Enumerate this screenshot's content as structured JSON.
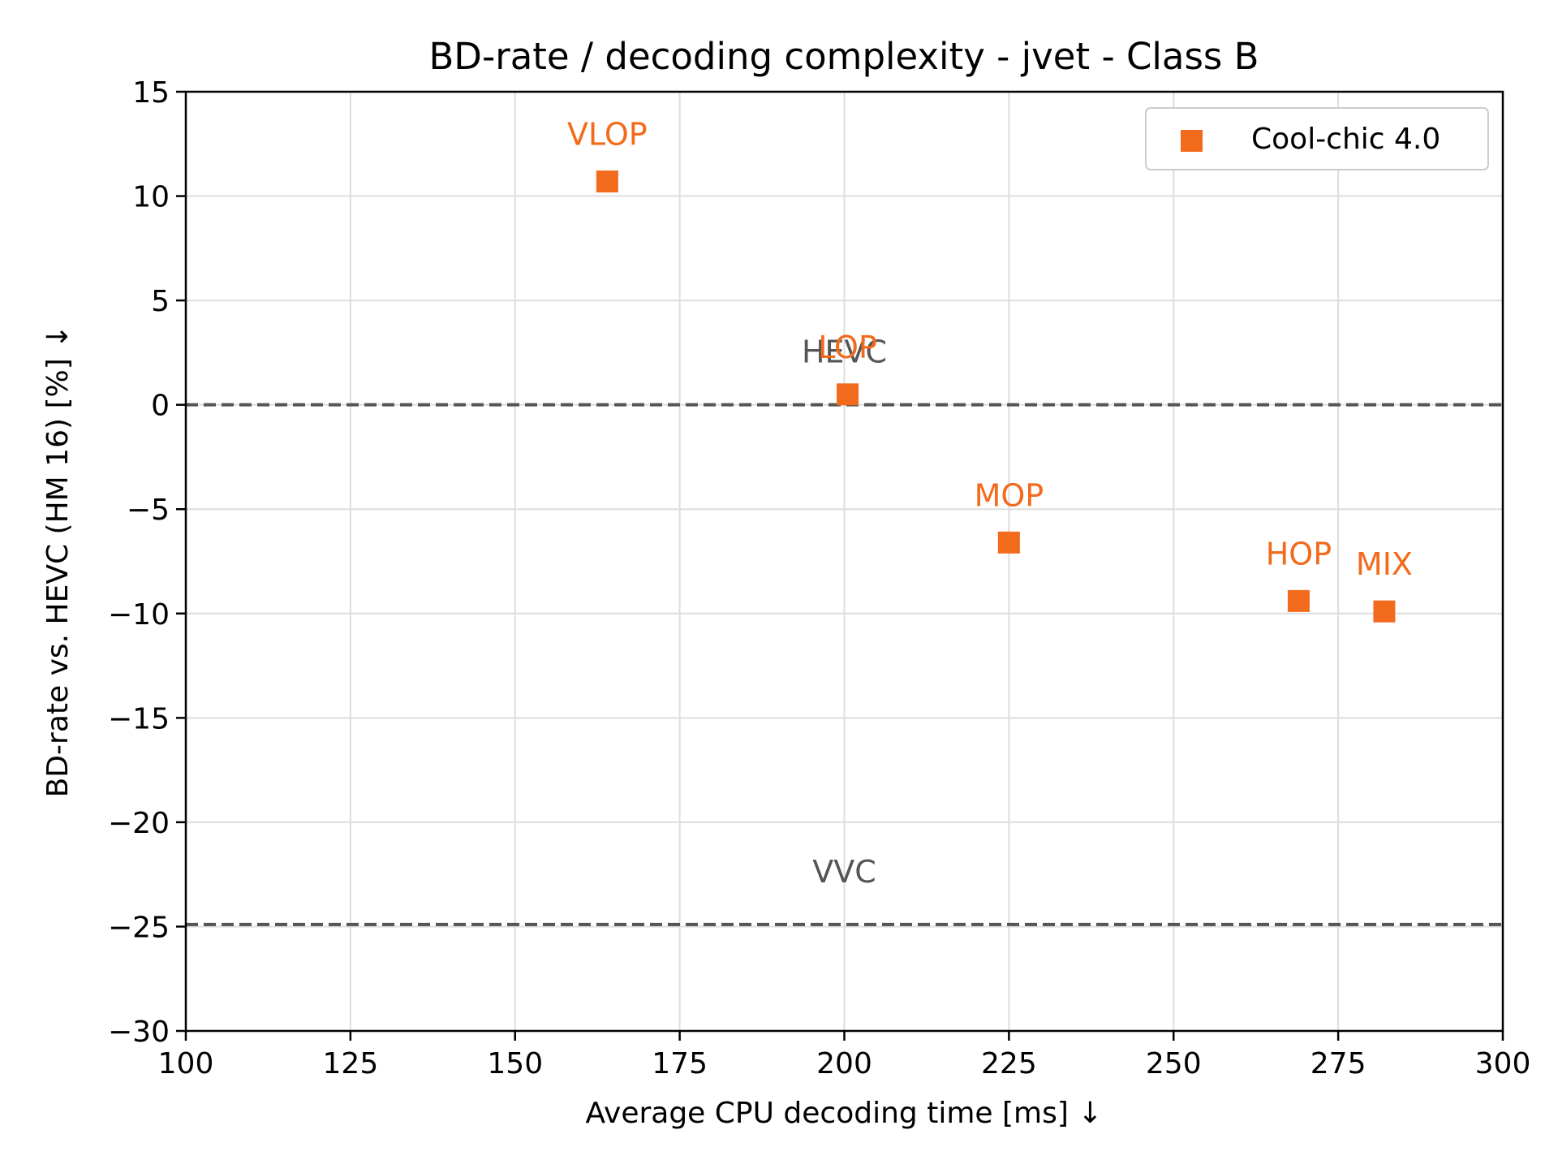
{
  "chart_data": {
    "type": "scatter",
    "title": "BD-rate / decoding complexity - jvet - Class B",
    "xlabel": "Average CPU decoding time [ms]  ↓",
    "ylabel": "BD-rate vs. HEVC (HM 16) [%]  ↓",
    "xlim": [
      100,
      300
    ],
    "ylim": [
      -30,
      15
    ],
    "xticks": [
      100,
      125,
      150,
      175,
      200,
      225,
      250,
      275,
      300
    ],
    "yticks": [
      15,
      10,
      5,
      0,
      -5,
      -10,
      -15,
      -20,
      -25,
      -30
    ],
    "ytick_labels": [
      "15",
      "10",
      "5",
      "0",
      "−5",
      "−10",
      "−15",
      "−20",
      "−25",
      "−30"
    ],
    "grid": true,
    "legend_position": "top-right",
    "series": [
      {
        "name": "Cool-chic 4.0",
        "marker": "square",
        "color": "#f26b1d",
        "points": [
          {
            "x": 164,
            "y": 10.7,
            "label": "VLOP"
          },
          {
            "x": 200.5,
            "y": 0.5,
            "label": "LOP"
          },
          {
            "x": 225,
            "y": -6.6,
            "label": "MOP"
          },
          {
            "x": 269,
            "y": -9.4,
            "label": "HOP"
          },
          {
            "x": 282,
            "y": -9.9,
            "label": "MIX"
          }
        ]
      }
    ],
    "reference_lines": [
      {
        "label": "HEVC",
        "y": 0,
        "label_x": 200,
        "color": "#555555"
      },
      {
        "label": "VVC",
        "y": -24.9,
        "label_x": 200,
        "color": "#555555"
      }
    ]
  }
}
